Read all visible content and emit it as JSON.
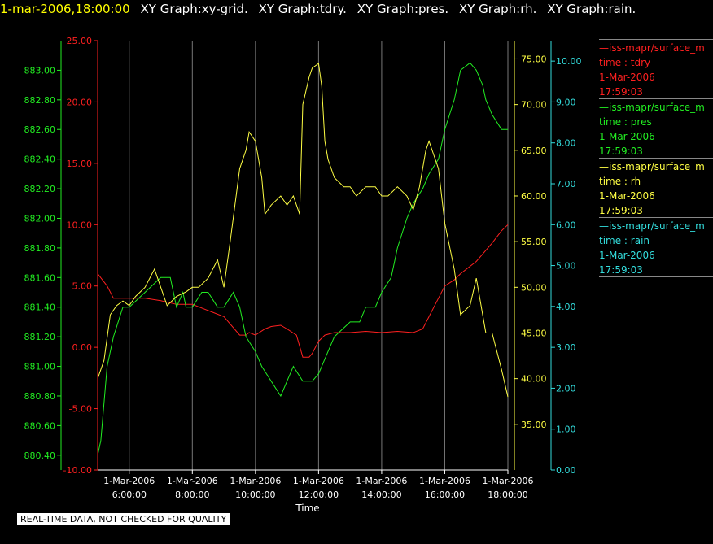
{
  "header": {
    "timestamp": "1-mar-2006,18:00:00",
    "segments": [
      "XY Graph:xy-grid.",
      "XY Graph:tdry.",
      "XY Graph:pres.",
      "XY Graph:rh.",
      "XY Graph:rain."
    ]
  },
  "legend": [
    {
      "name": "—iss-mapr/surface_m",
      "desc": "time : tdry",
      "date": "1-Mar-2006",
      "time": "17:59:03",
      "color": "#ff2020"
    },
    {
      "name": "—iss-mapr/surface_m",
      "desc": "time : pres",
      "date": "1-Mar-2006",
      "time": "17:59:03",
      "color": "#22ee22"
    },
    {
      "name": "—iss-mapr/surface_m",
      "desc": "time : rh",
      "date": "1-Mar-2006",
      "time": "17:59:03",
      "color": "#ffff44"
    },
    {
      "name": "—iss-mapr/surface_m",
      "desc": "time : rain",
      "date": "1-Mar-2006",
      "time": "17:59:03",
      "color": "#33dddd"
    }
  ],
  "disclaimer": "REAL-TIME DATA, NOT CHECKED FOR QUALITY",
  "chart_data": {
    "type": "line",
    "xlabel": "Time",
    "x_range": [
      5.0,
      18.0
    ],
    "x_ticks": [
      {
        "value": 6,
        "date": "1-Mar-2006",
        "time": "6:00:00"
      },
      {
        "value": 8,
        "date": "1-Mar-2006",
        "time": "8:00:00"
      },
      {
        "value": 10,
        "date": "1-Mar-2006",
        "time": "10:00:00"
      },
      {
        "value": 12,
        "date": "1-Mar-2006",
        "time": "12:00:00"
      },
      {
        "value": 14,
        "date": "1-Mar-2006",
        "time": "14:00:00"
      },
      {
        "value": 16,
        "date": "1-Mar-2006",
        "time": "16:00:00"
      },
      {
        "value": 18,
        "date": "1-Mar-2006",
        "time": "18:00:00"
      }
    ],
    "grid": "vertical",
    "axes": {
      "tdry": {
        "color": "#ff2020",
        "ylim": [
          -10,
          25
        ],
        "ticks": [
          "-10.00",
          "-5.00",
          "0.00",
          "5.00",
          "10.00",
          "15.00",
          "20.00",
          "25.00"
        ]
      },
      "pres": {
        "color": "#22ee22",
        "ylim": [
          880.3,
          883.2
        ],
        "ticks": [
          "880.40",
          "880.60",
          "880.80",
          "881.00",
          "881.20",
          "881.40",
          "881.60",
          "881.80",
          "882.00",
          "882.20",
          "882.40",
          "882.60",
          "882.80",
          "883.00"
        ]
      },
      "rh": {
        "color": "#ffff44",
        "ylim": [
          30.0,
          77.0
        ],
        "ticks": [
          "35.00",
          "40.00",
          "45.00",
          "50.00",
          "55.00",
          "60.00",
          "65.00",
          "70.00",
          "75.00"
        ]
      },
      "rain": {
        "color": "#33dddd",
        "ylim": [
          0,
          10.5
        ],
        "ticks": [
          "0.00",
          "1.00",
          "2.00",
          "3.00",
          "4.00",
          "5.00",
          "6.00",
          "7.00",
          "8.00",
          "9.00",
          "10.00"
        ]
      }
    },
    "series": [
      {
        "key": "tdry",
        "x": [
          5.0,
          5.3,
          5.5,
          5.8,
          6.0,
          6.5,
          7.0,
          7.5,
          8.0,
          8.5,
          9.0,
          9.5,
          9.7,
          9.8,
          10.0,
          10.3,
          10.5,
          10.8,
          11.0,
          11.3,
          11.5,
          11.7,
          11.8,
          12.0,
          12.2,
          12.5,
          13.0,
          13.5,
          14.0,
          14.5,
          15.0,
          15.3,
          15.5,
          15.7,
          16.0,
          16.3,
          16.5,
          17.0,
          17.5,
          17.8,
          18.0
        ],
        "y": [
          6.0,
          5.0,
          4.0,
          4.0,
          4.0,
          4.0,
          3.8,
          3.5,
          3.5,
          3.0,
          2.5,
          1.0,
          1.0,
          1.2,
          1.0,
          1.5,
          1.7,
          1.8,
          1.5,
          1.0,
          -0.8,
          -0.8,
          -0.5,
          0.5,
          1.0,
          1.2,
          1.2,
          1.3,
          1.2,
          1.3,
          1.2,
          1.5,
          2.5,
          3.5,
          5.0,
          5.5,
          6.0,
          7.0,
          8.5,
          9.5,
          10.0
        ]
      },
      {
        "key": "pres",
        "x": [
          5.0,
          5.1,
          5.3,
          5.5,
          5.8,
          6.0,
          6.5,
          7.0,
          7.3,
          7.5,
          7.7,
          7.8,
          8.0,
          8.3,
          8.5,
          8.8,
          9.0,
          9.3,
          9.5,
          9.7,
          10.0,
          10.2,
          10.5,
          10.8,
          11.0,
          11.2,
          11.5,
          11.8,
          12.0,
          12.3,
          12.5,
          13.0,
          13.3,
          13.5,
          13.8,
          14.0,
          14.3,
          14.5,
          14.8,
          15.0,
          15.3,
          15.5,
          15.8,
          16.0,
          16.3,
          16.5,
          16.8,
          17.0,
          17.2,
          17.3,
          17.5,
          17.8,
          18.0
        ],
        "y": [
          880.4,
          880.5,
          881.0,
          881.2,
          881.4,
          881.4,
          881.5,
          881.6,
          881.6,
          881.4,
          881.5,
          881.4,
          881.4,
          881.5,
          881.5,
          881.4,
          881.4,
          881.5,
          881.4,
          881.2,
          881.1,
          881.0,
          880.9,
          880.8,
          880.9,
          881.0,
          880.9,
          880.9,
          880.95,
          881.1,
          881.2,
          881.3,
          881.3,
          881.4,
          881.4,
          881.5,
          881.6,
          881.8,
          882.0,
          882.1,
          882.2,
          882.3,
          882.4,
          882.6,
          882.8,
          883.0,
          883.05,
          883.0,
          882.9,
          882.8,
          882.7,
          882.6,
          882.6
        ]
      },
      {
        "key": "rh",
        "x": [
          5.0,
          5.2,
          5.4,
          5.6,
          5.8,
          6.0,
          6.2,
          6.5,
          6.8,
          7.0,
          7.2,
          7.5,
          7.8,
          8.0,
          8.2,
          8.5,
          8.8,
          9.0,
          9.2,
          9.5,
          9.7,
          9.8,
          10.0,
          10.2,
          10.3,
          10.5,
          10.8,
          11.0,
          11.2,
          11.4,
          11.5,
          11.7,
          11.8,
          12.0,
          12.1,
          12.2,
          12.3,
          12.5,
          12.8,
          13.0,
          13.2,
          13.5,
          13.8,
          14.0,
          14.2,
          14.5,
          14.8,
          15.0,
          15.2,
          15.4,
          15.5,
          15.7,
          15.8,
          16.0,
          16.3,
          16.5,
          16.8,
          17.0,
          17.2,
          17.3,
          17.5,
          17.8,
          18.0
        ],
        "y": [
          40.0,
          42.0,
          47.0,
          48.0,
          48.5,
          48.0,
          49.0,
          50.0,
          52.0,
          50.0,
          48.0,
          49.0,
          49.5,
          50.0,
          50.0,
          51.0,
          53.0,
          50.0,
          55.0,
          63.0,
          65.0,
          67.0,
          66.0,
          62.0,
          58.0,
          59.0,
          60.0,
          59.0,
          60.0,
          58.0,
          70.0,
          73.0,
          74.0,
          74.5,
          72.0,
          66.0,
          64.0,
          62.0,
          61.0,
          61.0,
          60.0,
          61.0,
          61.0,
          60.0,
          60.0,
          61.0,
          60.0,
          58.5,
          61.0,
          65.0,
          66.0,
          64.0,
          63.0,
          57.0,
          52.0,
          47.0,
          48.0,
          51.0,
          47.0,
          45.0,
          45.0,
          41.0,
          38.0
        ]
      },
      {
        "key": "rain",
        "x": [
          5.0,
          18.0
        ],
        "y": [
          0.0,
          0.0
        ]
      }
    ]
  }
}
